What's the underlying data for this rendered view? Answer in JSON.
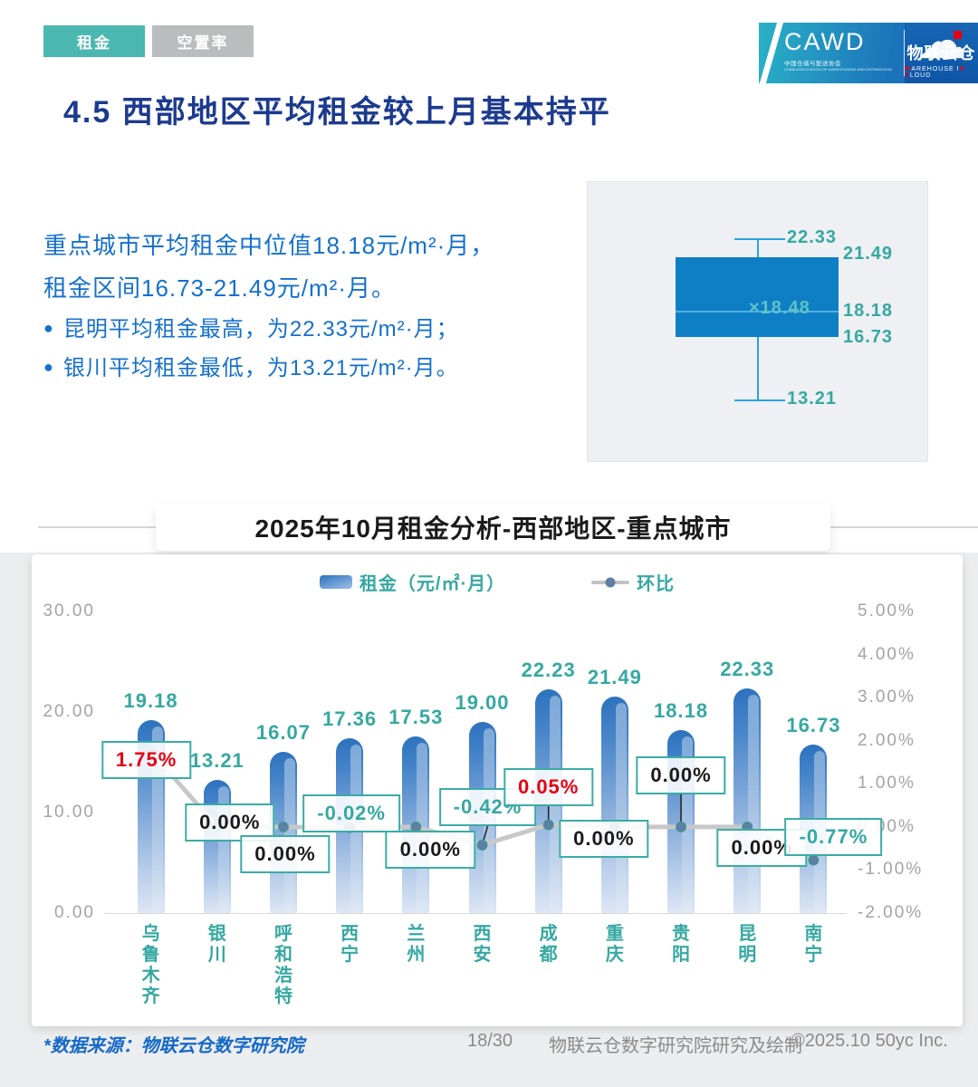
{
  "tabs": [
    {
      "label": "租金"
    },
    {
      "label": "空置率"
    }
  ],
  "logo": {
    "cawd": "CAWD",
    "cawd_sub": "中国仓储与配送协会",
    "cawd_sub_en": "CHINA ASSOCIATION OF WAREHOUSING AND DISTRIBUTION",
    "brand": "物联云仓",
    "brand_sub_w": "W",
    "brand_sub_1": "AREHOUSE I",
    "brand_sub_n": "N",
    "brand_sub_2": " ",
    "brand_sub_c": "C",
    "brand_sub_3": "LOUD"
  },
  "page_title": "4.5 西部地区平均租金较上月基本持平",
  "summary": {
    "line1": "重点城市平均租金中位值18.18元/m²·月，",
    "line2": "租金区间16.73-21.49元/m²·月。",
    "bullet1": "昆明平均租金最高，为22.33元/m²·月；",
    "bullet2": "银川平均租金最低，为13.21元/m²·月。"
  },
  "boxplot": {
    "max": "22.33",
    "q3": "21.49",
    "mean": "×18.48",
    "median": "18.18",
    "q1": "16.73",
    "min": "13.21"
  },
  "chart_title": "2025年10月租金分析-西部地区-重点城市",
  "legend": {
    "rent": "租金（元/㎡·月）",
    "mom": "环比"
  },
  "chart_data": {
    "type": "bar+line",
    "title": "2025年10月租金分析-西部地区-重点城市",
    "categories": [
      "乌鲁木齐",
      "银川",
      "呼和浩特",
      "西宁",
      "兰州",
      "西安",
      "成都",
      "重庆",
      "贵阳",
      "昆明",
      "南宁"
    ],
    "series": [
      {
        "name": "租金（元/㎡·月）",
        "type": "bar",
        "axis": "left",
        "values": [
          19.18,
          13.21,
          16.07,
          17.36,
          17.53,
          19.0,
          22.23,
          21.49,
          18.18,
          22.33,
          16.73
        ],
        "labels": [
          "19.18",
          "13.21",
          "16.07",
          "17.36",
          "17.53",
          "19.00",
          "22.23",
          "21.49",
          "18.18",
          "22.33",
          "16.73"
        ]
      },
      {
        "name": "环比",
        "type": "line",
        "axis": "right",
        "values": [
          1.75,
          0.0,
          0.0,
          -0.02,
          0.0,
          -0.42,
          0.05,
          0.0,
          0.0,
          0.0,
          -0.77
        ],
        "labels": [
          "1.75%",
          "0.00%",
          "0.00%",
          "-0.02%",
          "0.00%",
          "-0.42%",
          "0.05%",
          "0.00%",
          "0.00%",
          "0.00%",
          "-0.77%"
        ]
      }
    ],
    "left_axis": {
      "ticks": [
        "30.00",
        "20.00",
        "10.00",
        "0.00"
      ],
      "min": 0,
      "max": 30
    },
    "right_axis": {
      "ticks": [
        "5.00%",
        "4.00%",
        "3.00%",
        "2.00%",
        "1.00%",
        "0.00%",
        "-1.00%",
        "-2.00%"
      ],
      "min": -2,
      "max": 5
    },
    "legend_position": "top",
    "grid": false,
    "colors": {
      "teal": "#35a8a1",
      "positive_label": "#e60012",
      "zero_label": "#1a1a1a",
      "negative_label": "#35a8a1",
      "bar_top": "#2d72be",
      "bar_bottom": "#dde6f5",
      "line": "#c8c8c8",
      "dot": "#5d80a3"
    }
  },
  "footer": {
    "source": "*数据来源：物联云仓数字研究院",
    "page": "18/30",
    "credit": "物联云仓数字研究院研究及绘制",
    "copyright": "©2025.10 50yc Inc."
  }
}
